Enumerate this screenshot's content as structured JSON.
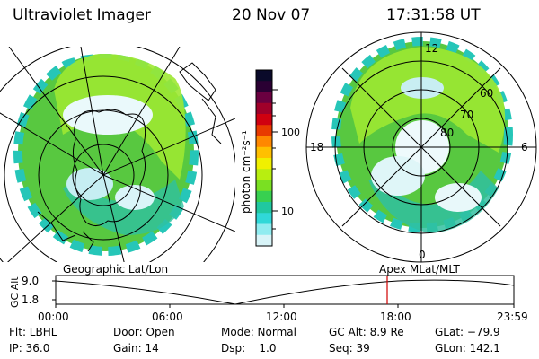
{
  "header": {
    "title": "Ultraviolet Imager",
    "date": "20 Nov 07",
    "time": "17:31:58 UT"
  },
  "colorbar": {
    "unit_label": "photon cm⁻²s⁻¹",
    "tick_labels": [
      "100",
      "10"
    ],
    "colors": [
      "#0a0a2a",
      "#2a0033",
      "#6a0040",
      "#a0002a",
      "#d00010",
      "#e83a00",
      "#ff8800",
      "#ffc000",
      "#f0f000",
      "#b8ee10",
      "#7ae022",
      "#38d050",
      "#20c8a0",
      "#30d8d8",
      "#90ecf0",
      "#d8f4f8"
    ]
  },
  "left_map": {
    "projection_label": "Geographic Lat/Lon"
  },
  "right_map": {
    "projection_label": "Apex  MLat/MLT",
    "mlt_labels": {
      "top": "12",
      "left": "18",
      "right": "6",
      "bottom": "0"
    },
    "mlat_labels": [
      "60",
      "70",
      "80"
    ]
  },
  "altitude_plot": {
    "ylabel": "GC Alt",
    "y_ticks": [
      "9.0",
      "1.8"
    ],
    "x_ticks": [
      "00:00",
      "06:00",
      "12:00",
      "18:00",
      "23:59"
    ],
    "marker_time": "17:31:58",
    "colors": {
      "marker": "#d00000"
    }
  },
  "status": {
    "filter": "Flt: LBHL",
    "ip": "IP: 36.0",
    "door": "Door: Open",
    "gain": "Gain: 14",
    "mode": "Mode: Normal",
    "dsp": "Dsp:    1.0",
    "gc_alt": "GC Alt: 8.9 Re",
    "seq": "Seq: 39",
    "glat": "GLat: −79.9",
    "glon": "GLon: 142.1"
  }
}
